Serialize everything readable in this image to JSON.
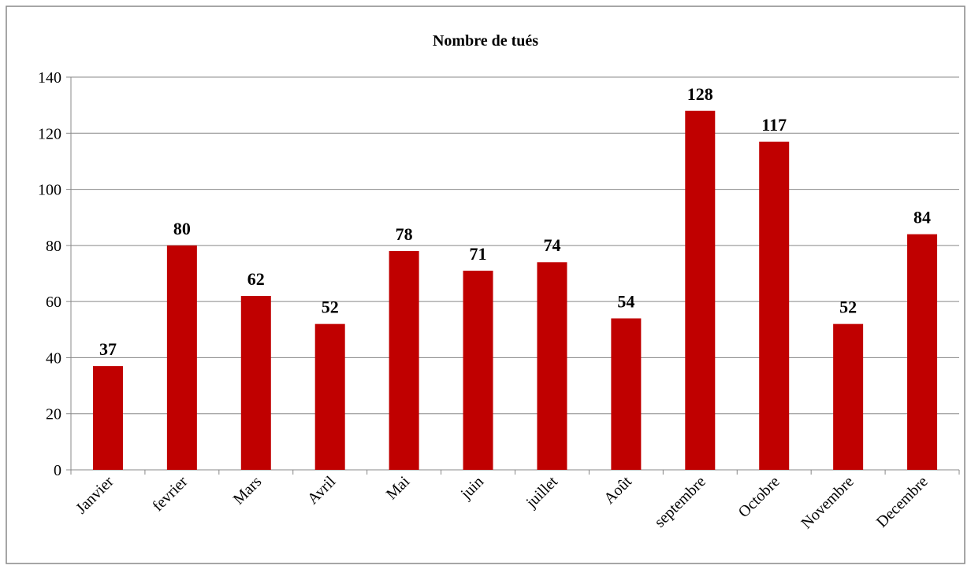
{
  "chart_data": {
    "type": "bar",
    "title": "Nombre de tués",
    "categories": [
      "Janvier",
      "fevrier",
      "Mars",
      "Avril",
      "Mai",
      "juin",
      "juillet",
      "Août",
      "septembre",
      "Octobre",
      "Novembre",
      "Decembre"
    ],
    "values": [
      37,
      80,
      62,
      52,
      78,
      71,
      74,
      54,
      128,
      117,
      52,
      84
    ],
    "color": "#c00000",
    "ylim": [
      0,
      140
    ],
    "yticks": [
      0,
      20,
      40,
      60,
      80,
      100,
      120,
      140
    ],
    "grid": true
  }
}
